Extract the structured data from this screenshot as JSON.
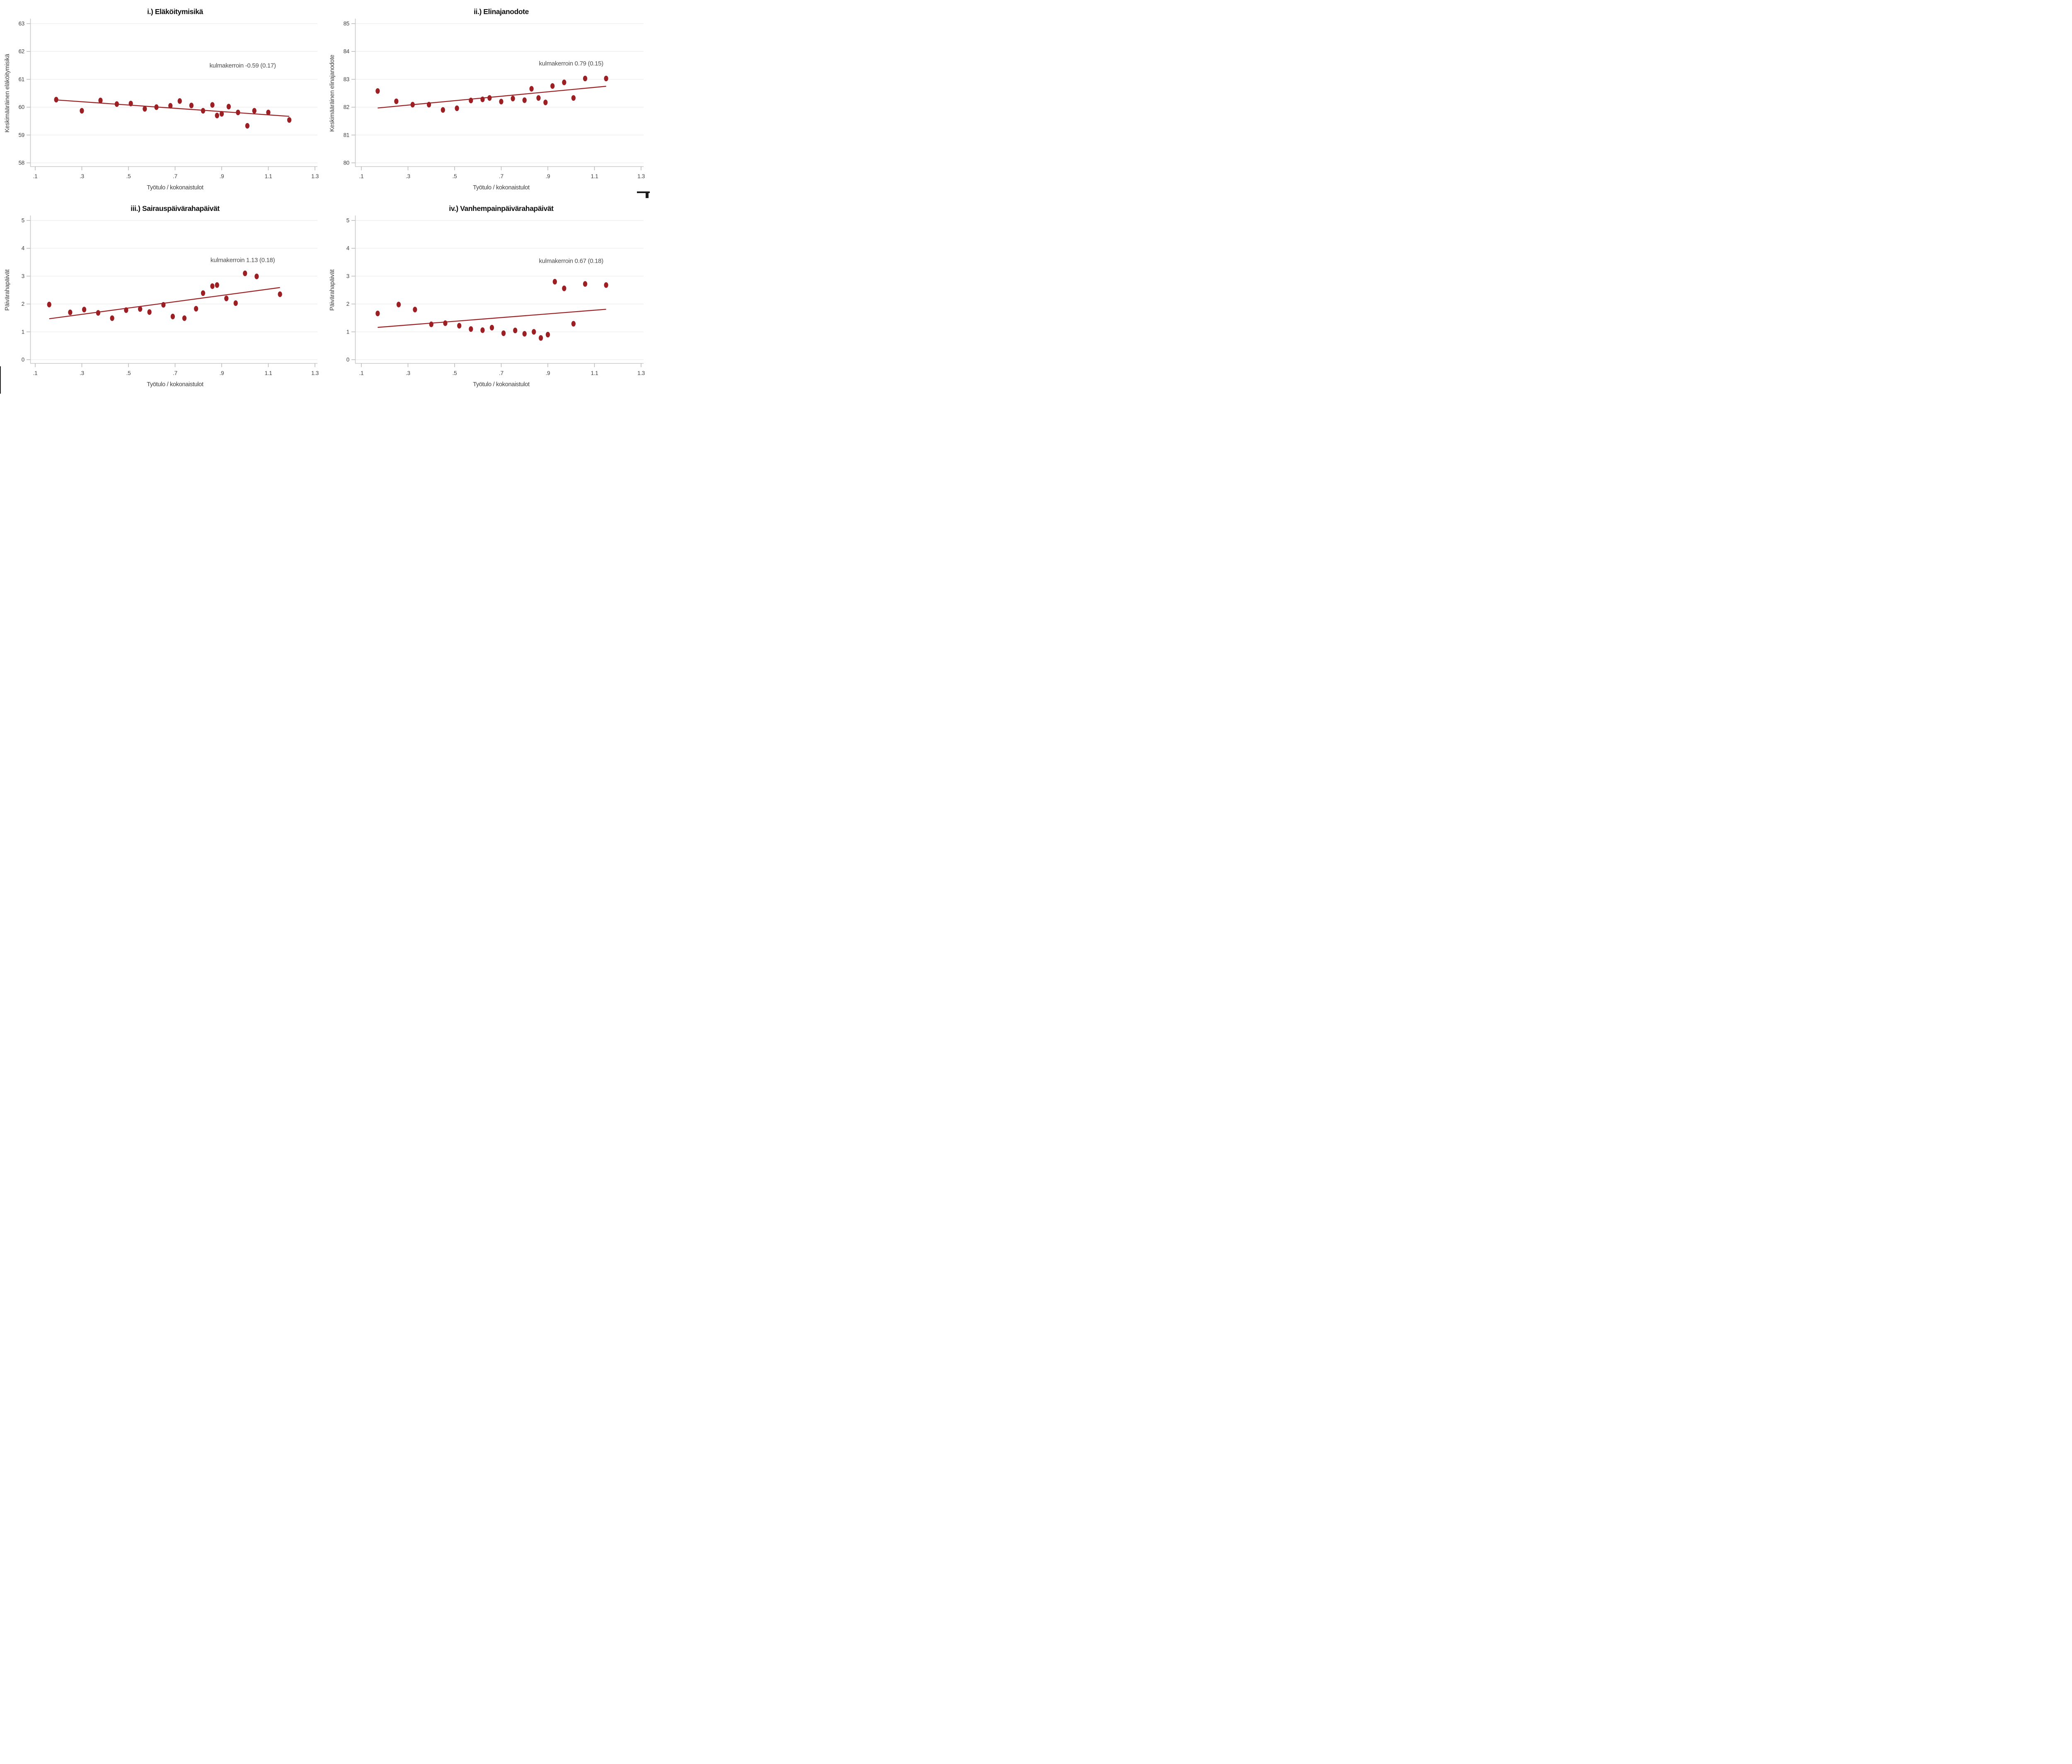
{
  "figure": {
    "background": "#ffffff",
    "dot_color": "#9c1f24",
    "fit_line_color": "#9c1f24",
    "grid_color": "#ededed",
    "axis_color": "#c8c8c8",
    "tick_color": "#b3b3b3",
    "tick_label_color": "#3f3f3f",
    "title_color": "#101010",
    "annotation_color": "#4d4d4d",
    "axis_label_color": "#3f3f3f"
  },
  "chart_data": [
    {
      "id": "i",
      "type": "scatter",
      "title": "i.) Eläköitymisikä",
      "xlabel": "Työtulo / kokonaistulot",
      "ylabel": "Keskimääräinen eläköitymisikä",
      "annotation": {
        "text": "kulmakerroin -0.59 (0.17)",
        "x": 0.99,
        "y": 61.5
      },
      "slope": -0.59,
      "slope_se": 0.17,
      "xlim": [
        0.1,
        1.3
      ],
      "ylim": [
        58,
        63
      ],
      "xticks": [
        ".1",
        ".3",
        ".5",
        ".7",
        ".9",
        "1.1",
        "1.3"
      ],
      "xtick_values": [
        0.1,
        0.3,
        0.5,
        0.7,
        0.9,
        1.1,
        1.3
      ],
      "yticks": [
        "58",
        "59",
        "60",
        "61",
        "62",
        "63"
      ],
      "ytick_values": [
        58,
        59,
        60,
        61,
        62,
        63
      ],
      "grid": true,
      "points": [
        [
          0.19,
          60.27
        ],
        [
          0.3,
          59.87
        ],
        [
          0.38,
          60.24
        ],
        [
          0.45,
          60.11
        ],
        [
          0.51,
          60.13
        ],
        [
          0.57,
          59.94
        ],
        [
          0.62,
          60.0
        ],
        [
          0.68,
          60.05
        ],
        [
          0.72,
          60.22
        ],
        [
          0.77,
          60.06
        ],
        [
          0.82,
          59.87
        ],
        [
          0.86,
          60.08
        ],
        [
          0.88,
          59.7
        ],
        [
          0.9,
          59.76
        ],
        [
          0.93,
          60.02
        ],
        [
          0.97,
          59.81
        ],
        [
          1.01,
          59.33
        ],
        [
          1.04,
          59.87
        ],
        [
          1.1,
          59.81
        ],
        [
          1.19,
          59.54
        ]
      ],
      "fit_line": {
        "x1": 0.19,
        "y1": 60.26,
        "x2": 1.19,
        "y2": 59.67
      }
    },
    {
      "id": "ii",
      "type": "scatter",
      "title": "ii.) Elinajanodote",
      "xlabel": "Työtulo / kokonaistulot",
      "ylabel": "Keskimääräinen elinajanodote",
      "annotation": {
        "text": "kulmakerroin 0.79 (0.15)",
        "x": 1.0,
        "y": 83.57
      },
      "slope": 0.79,
      "slope_se": 0.15,
      "xlim": [
        0.1,
        1.3
      ],
      "ylim": [
        80,
        85
      ],
      "xticks": [
        ".1",
        ".3",
        ".5",
        ".7",
        ".9",
        "1.1",
        "1.3"
      ],
      "xtick_values": [
        0.1,
        0.3,
        0.5,
        0.7,
        0.9,
        1.1,
        1.3
      ],
      "yticks": [
        "80",
        "81",
        "82",
        "83",
        "84",
        "85"
      ],
      "ytick_values": [
        80,
        81,
        82,
        83,
        84,
        85
      ],
      "grid": true,
      "points": [
        [
          0.17,
          82.58
        ],
        [
          0.25,
          82.21
        ],
        [
          0.32,
          82.09
        ],
        [
          0.39,
          82.09
        ],
        [
          0.45,
          81.9
        ],
        [
          0.51,
          81.96
        ],
        [
          0.57,
          82.24
        ],
        [
          0.62,
          82.28
        ],
        [
          0.65,
          82.33
        ],
        [
          0.7,
          82.2
        ],
        [
          0.75,
          82.31
        ],
        [
          0.8,
          82.25
        ],
        [
          0.83,
          82.66
        ],
        [
          0.86,
          82.33
        ],
        [
          0.89,
          82.17
        ],
        [
          0.92,
          82.76
        ],
        [
          0.97,
          82.89
        ],
        [
          1.01,
          82.33
        ],
        [
          1.06,
          83.03
        ],
        [
          1.15,
          83.03
        ]
      ],
      "fit_line": {
        "x1": 0.17,
        "y1": 81.97,
        "x2": 1.15,
        "y2": 82.75
      }
    },
    {
      "id": "iii",
      "type": "scatter",
      "title": "iii.) Sairauspäivärahapäivät",
      "xlabel": "Työtulo / kokonaistulot",
      "ylabel": "Päivärahapäivät",
      "annotation": {
        "text": "kulmakerroin 1.13 (0.18)",
        "x": 0.99,
        "y": 3.58
      },
      "slope": 1.13,
      "slope_se": 0.18,
      "xlim": [
        0.1,
        1.3
      ],
      "ylim": [
        0,
        5
      ],
      "xticks": [
        ".1",
        ".3",
        ".5",
        ".7",
        ".9",
        "1.1",
        "1.3"
      ],
      "xtick_values": [
        0.1,
        0.3,
        0.5,
        0.7,
        0.9,
        1.1,
        1.3
      ],
      "yticks": [
        "0",
        "1",
        "2",
        "3",
        "4",
        "5"
      ],
      "ytick_values": [
        0,
        1,
        2,
        3,
        4,
        5
      ],
      "grid": true,
      "points": [
        [
          0.16,
          1.98
        ],
        [
          0.25,
          1.7
        ],
        [
          0.31,
          1.8
        ],
        [
          0.37,
          1.68
        ],
        [
          0.43,
          1.49
        ],
        [
          0.49,
          1.78
        ],
        [
          0.55,
          1.82
        ],
        [
          0.59,
          1.71
        ],
        [
          0.65,
          1.97
        ],
        [
          0.69,
          1.55
        ],
        [
          0.74,
          1.49
        ],
        [
          0.79,
          1.83
        ],
        [
          0.82,
          2.39
        ],
        [
          0.86,
          2.64
        ],
        [
          0.88,
          2.68
        ],
        [
          0.92,
          2.2
        ],
        [
          0.96,
          2.03
        ],
        [
          1.0,
          3.1
        ],
        [
          1.05,
          2.99
        ],
        [
          1.15,
          2.35
        ]
      ],
      "fit_line": {
        "x1": 0.16,
        "y1": 1.47,
        "x2": 1.15,
        "y2": 2.59
      }
    },
    {
      "id": "iv",
      "type": "scatter",
      "title": "iv.) Vanhempainpäivärahapäivät",
      "xlabel": "Työtulo / kokonaistulot",
      "ylabel": "Päivärahapäivät",
      "annotation": {
        "text": "kulmakerroin 0.67 (0.18)",
        "x": 1.0,
        "y": 3.55
      },
      "slope": 0.67,
      "slope_se": 0.18,
      "xlim": [
        0.1,
        1.3
      ],
      "ylim": [
        0,
        5
      ],
      "xticks": [
        ".1",
        ".3",
        ".5",
        ".7",
        ".9",
        "1.1",
        "1.3"
      ],
      "xtick_values": [
        0.1,
        0.3,
        0.5,
        0.7,
        0.9,
        1.1,
        1.3
      ],
      "yticks": [
        "0",
        "1",
        "2",
        "3",
        "4",
        "5"
      ],
      "ytick_values": [
        0,
        1,
        2,
        3,
        4,
        5
      ],
      "grid": true,
      "points": [
        [
          0.17,
          1.66
        ],
        [
          0.26,
          1.98
        ],
        [
          0.33,
          1.8
        ],
        [
          0.4,
          1.27
        ],
        [
          0.46,
          1.31
        ],
        [
          0.52,
          1.22
        ],
        [
          0.57,
          1.1
        ],
        [
          0.62,
          1.06
        ],
        [
          0.66,
          1.15
        ],
        [
          0.71,
          0.95
        ],
        [
          0.76,
          1.05
        ],
        [
          0.8,
          0.93
        ],
        [
          0.84,
          1.0
        ],
        [
          0.87,
          0.78
        ],
        [
          0.9,
          0.9
        ],
        [
          0.93,
          2.8
        ],
        [
          0.97,
          2.56
        ],
        [
          1.01,
          1.29
        ],
        [
          1.06,
          2.72
        ],
        [
          1.15,
          2.68
        ]
      ],
      "fit_line": {
        "x1": 0.17,
        "y1": 1.16,
        "x2": 1.15,
        "y2": 1.81
      }
    }
  ]
}
